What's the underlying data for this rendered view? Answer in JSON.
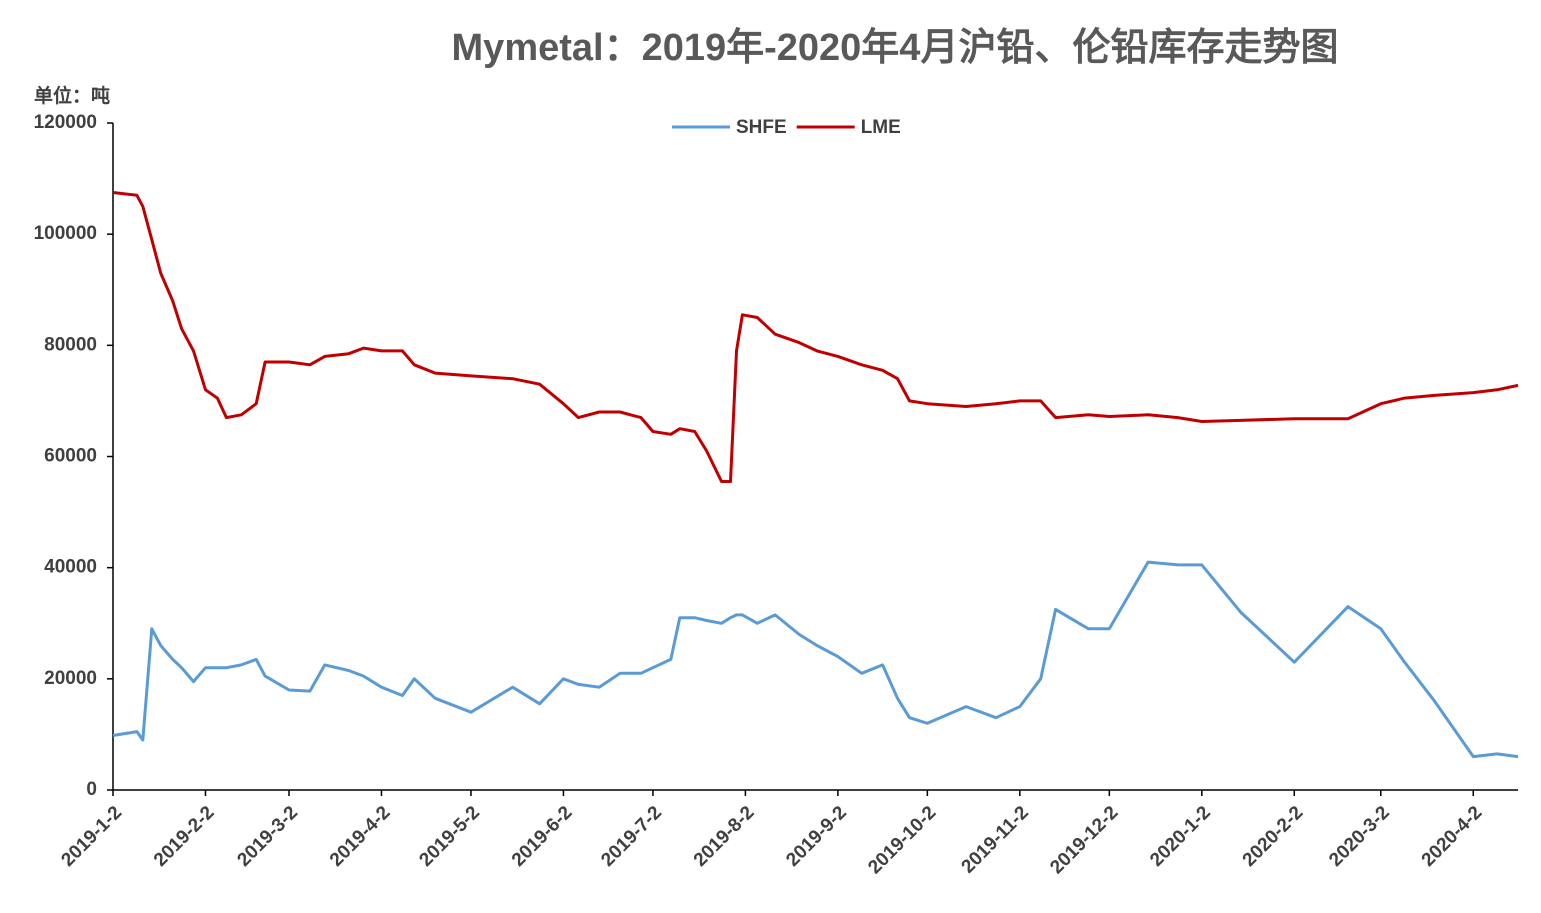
{
  "chart_data": {
    "type": "line",
    "title": "Mymetal：2019年-2020年4月沪铅、伦铅库存走势图",
    "y_label": "单位：吨",
    "x": [
      "2019-1-2",
      "2019-1-10",
      "2019-1-12",
      "2019-1-15",
      "2019-1-18",
      "2019-1-22",
      "2019-1-25",
      "2019-1-29",
      "2019-2-2",
      "2019-2-6",
      "2019-2-9",
      "2019-2-14",
      "2019-2-19",
      "2019-2-22",
      "2019-3-2",
      "2019-3-9",
      "2019-3-14",
      "2019-3-22",
      "2019-3-27",
      "2019-4-2",
      "2019-4-9",
      "2019-4-13",
      "2019-4-20",
      "2019-5-2",
      "2019-5-16",
      "2019-5-25",
      "2019-6-2",
      "2019-6-7",
      "2019-6-14",
      "2019-6-21",
      "2019-6-28",
      "2019-7-2",
      "2019-7-8",
      "2019-7-11",
      "2019-7-16",
      "2019-7-20",
      "2019-7-25",
      "2019-7-28",
      "2019-7-30",
      "2019-8-1",
      "2019-8-6",
      "2019-8-12",
      "2019-8-20",
      "2019-8-26",
      "2019-9-2",
      "2019-9-10",
      "2019-9-17",
      "2019-9-22",
      "2019-9-26",
      "2019-10-2",
      "2019-10-15",
      "2019-10-25",
      "2019-11-2",
      "2019-11-9",
      "2019-11-14",
      "2019-11-25",
      "2019-12-2",
      "2019-12-15",
      "2019-12-25",
      "2020-1-2",
      "2020-1-15",
      "2020-2-2",
      "2020-2-20",
      "2020-3-2",
      "2020-3-10",
      "2020-3-20",
      "2020-4-2",
      "2020-4-10",
      "2020-4-17"
    ],
    "series": [
      {
        "name": "SHFE",
        "color": "#5b9bd5",
        "values": [
          9800,
          10500,
          9000,
          29000,
          26000,
          23500,
          22000,
          19500,
          22000,
          22000,
          22000,
          22500,
          23500,
          20500,
          18000,
          17800,
          22500,
          21500,
          20500,
          18500,
          17000,
          20000,
          16500,
          14000,
          18500,
          15500,
          20000,
          19000,
          18500,
          21000,
          21000,
          22000,
          23500,
          31000,
          31000,
          30500,
          30000,
          31000,
          31500,
          31500,
          30000,
          31500,
          28000,
          26000,
          24000,
          21000,
          22500,
          16500,
          13000,
          12000,
          15000,
          13000,
          15000,
          20000,
          32500,
          29000,
          29000,
          41000,
          40500,
          40500,
          32000,
          23000,
          33000,
          29000,
          23000,
          16000,
          6000,
          6500,
          6000
        ]
      },
      {
        "name": "LME",
        "color": "#c00000",
        "values": [
          107500,
          107000,
          105000,
          99000,
          93000,
          88000,
          83000,
          79000,
          72000,
          70500,
          67000,
          67500,
          69500,
          77000,
          77000,
          76500,
          78000,
          78500,
          79500,
          79000,
          79000,
          76500,
          75000,
          74500,
          74000,
          73000,
          69500,
          67000,
          68000,
          68000,
          67000,
          64500,
          64000,
          65000,
          64500,
          61000,
          55500,
          55500,
          79000,
          85500,
          85000,
          82000,
          80500,
          79000,
          78000,
          76500,
          75500,
          74000,
          70000,
          69500,
          69000,
          69500,
          70000,
          70000,
          67000,
          67500,
          67200,
          67500,
          67000,
          66300,
          66500,
          66800,
          66800,
          69500,
          70500,
          71000,
          71500,
          72000,
          72800
        ]
      }
    ],
    "xlim": [
      "2019-1-2",
      "2020-4-17"
    ],
    "xticks": [
      "2019-1-2",
      "2019-2-2",
      "2019-3-2",
      "2019-4-2",
      "2019-5-2",
      "2019-6-2",
      "2019-7-2",
      "2019-8-2",
      "2019-9-2",
      "2019-10-2",
      "2019-11-2",
      "2019-12-2",
      "2020-1-2",
      "2020-2-2",
      "2020-3-2",
      "2020-4-2"
    ],
    "ylim": [
      0,
      120000
    ],
    "yticks": [
      0,
      20000,
      40000,
      60000,
      80000,
      100000,
      120000
    ],
    "legend": "top"
  }
}
